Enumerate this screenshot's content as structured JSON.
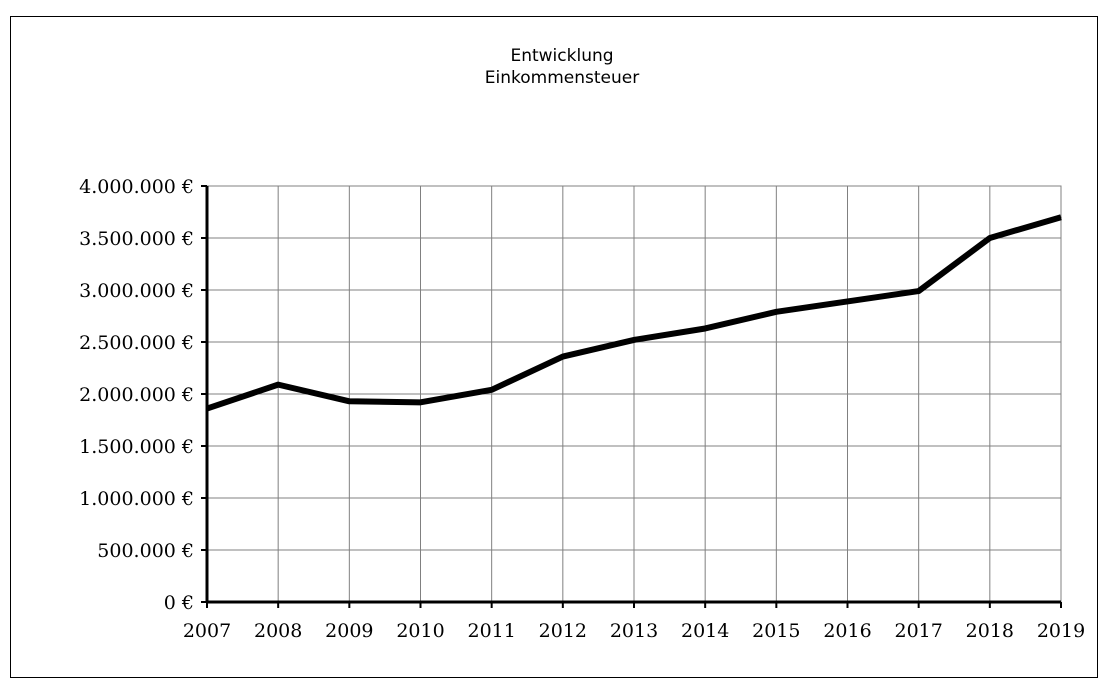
{
  "chart_data": {
    "type": "line",
    "title": [
      "Entwicklung",
      "Einkommensteuer"
    ],
    "categories": [
      "2007",
      "2008",
      "2009",
      "2010",
      "2011",
      "2012",
      "2013",
      "2014",
      "2015",
      "2016",
      "2017",
      "2018",
      "2019"
    ],
    "series": [
      {
        "values": [
          1860000,
          2090000,
          1930000,
          1920000,
          2040000,
          2360000,
          2520000,
          2630000,
          2790000,
          2890000,
          2990000,
          3500000,
          3700000
        ]
      }
    ],
    "ylim": [
      0,
      4000000
    ],
    "yticks": [
      0,
      500000,
      1000000,
      1500000,
      2000000,
      2500000,
      3000000,
      3500000,
      4000000
    ],
    "ytick_labels": [
      "0 €",
      "500.000 €",
      "1.000.000 €",
      "1.500.000 €",
      "2.000.000 €",
      "2.500.000 €",
      "3.000.000 €",
      "3.500.000 €",
      "4.000.000 €"
    ],
    "grid": true,
    "legend": "none",
    "line_color": "#000000",
    "grid_color": "#808080"
  }
}
